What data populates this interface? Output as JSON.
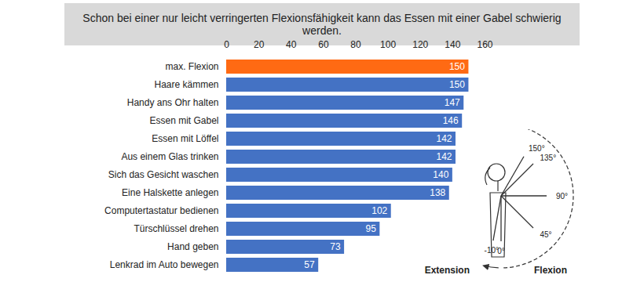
{
  "chart_data": {
    "type": "bar",
    "title": "Schon bei einer nur leicht verringerten Flexionsfähigkeit kann das Essen mit einer Gabel schwierig werden.",
    "orientation": "horizontal",
    "categories": [
      "max. Flexion",
      "Haare kämmen",
      "Handy ans Ohr halten",
      "Essen mit Gabel",
      "Essen mit Löffel",
      "Aus einem Glas trinken",
      "Sich das Gesicht waschen",
      "Eine Halskette anlegen",
      "Computertastatur bedienen",
      "Türschlüssel drehen",
      "Hand geben",
      "Lenkrad im Auto bewegen"
    ],
    "values": [
      150,
      150,
      147,
      146,
      142,
      142,
      140,
      138,
      102,
      95,
      73,
      57
    ],
    "colors": [
      "#ff6a13",
      "#4472c4",
      "#4472c4",
      "#4472c4",
      "#4472c4",
      "#4472c4",
      "#4472c4",
      "#4472c4",
      "#4472c4",
      "#4472c4",
      "#4472c4",
      "#4472c4"
    ],
    "xlim": [
      0,
      160
    ],
    "xticks": [
      0,
      20,
      40,
      60,
      80,
      100,
      120,
      140,
      160
    ],
    "data_labels": true,
    "angle_labels": [
      {
        "value": 150,
        "label": "150°"
      },
      {
        "value": 135,
        "label": "135°"
      },
      {
        "value": 90,
        "label": "90°"
      },
      {
        "value": 45,
        "label": "45°"
      },
      {
        "value": 0,
        "label": "0°"
      },
      {
        "value": -10,
        "label": "-10°"
      }
    ],
    "annotations": [
      "Extension",
      "Flexion"
    ]
  }
}
